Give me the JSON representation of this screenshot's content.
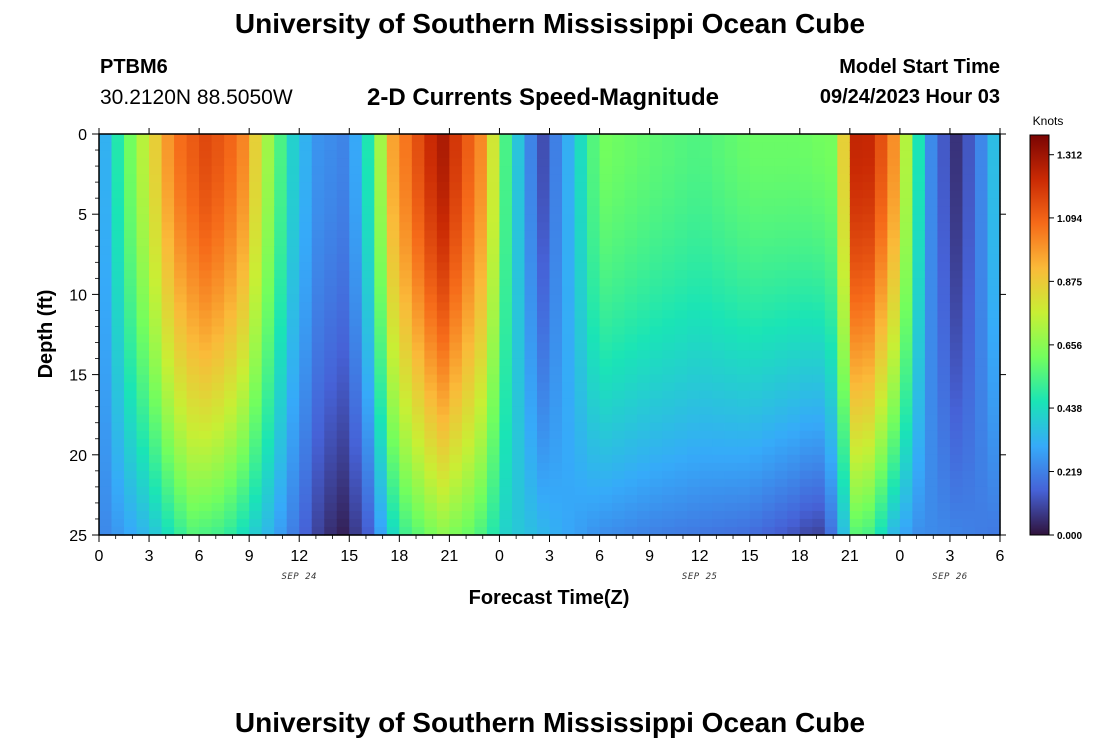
{
  "header": {
    "title": "University of Southern Mississippi Ocean Cube",
    "station_id": "PTBM6",
    "coords": "30.2120N  88.5050W",
    "model_label": "Model Start Time",
    "model_time": "09/24/2023 Hour 03"
  },
  "footer": {
    "title": "University of Southern Mississippi Ocean Cube"
  },
  "chart_data": {
    "type": "heatmap",
    "title": "2-D Currents Speed-Magnitude",
    "xlabel": "Forecast Time(Z)",
    "ylabel": "Depth (ft)",
    "x_unit": "hours since 2023-09-24 00Z",
    "xlim": [
      0,
      54
    ],
    "ylim": [
      0,
      25
    ],
    "y_inverted": true,
    "x_ticks": [
      0,
      3,
      6,
      9,
      12,
      15,
      18,
      21,
      24,
      27,
      30,
      33,
      36,
      39,
      42,
      45,
      48,
      51,
      54
    ],
    "x_tick_labels": [
      "0",
      "3",
      "6",
      "9",
      "12",
      "15",
      "18",
      "21",
      "0",
      "3",
      "6",
      "9",
      "12",
      "15",
      "18",
      "21",
      "0",
      "3",
      "6"
    ],
    "y_ticks": [
      0,
      5,
      10,
      15,
      20,
      25
    ],
    "y_tick_labels": [
      "0",
      "5",
      "10",
      "15",
      "20",
      "25"
    ],
    "date_labels": [
      {
        "text": "SEP 24",
        "x": 12
      },
      {
        "text": "SEP 25",
        "x": 36
      },
      {
        "text": "SEP 26",
        "x": 51
      }
    ],
    "colorbar": {
      "unit": "Knots",
      "min": 0.0,
      "max": 1.38,
      "ticks": [
        0.0,
        0.219,
        0.438,
        0.656,
        0.875,
        1.094,
        1.312
      ],
      "tick_labels": [
        "0.000",
        "0.219",
        "0.438",
        "0.656",
        "0.875",
        "1.094",
        "1.312"
      ],
      "colors": [
        "#30123b",
        "#4662d7",
        "#36aaf9",
        "#1ae4b6",
        "#72fe5e",
        "#c8ef34",
        "#faba39",
        "#f66b19",
        "#ca2a04",
        "#7a0403"
      ]
    },
    "surface_speed_knots": [
      {
        "t": 0,
        "v": 0.25
      },
      {
        "t": 1.5,
        "v": 0.55
      },
      {
        "t": 3,
        "v": 0.8
      },
      {
        "t": 4.5,
        "v": 1.05
      },
      {
        "t": 6.5,
        "v": 1.16
      },
      {
        "t": 8.5,
        "v": 1.05
      },
      {
        "t": 10,
        "v": 0.72
      },
      {
        "t": 11.5,
        "v": 0.42
      },
      {
        "t": 13,
        "v": 0.26
      },
      {
        "t": 15,
        "v": 0.22
      },
      {
        "t": 16.5,
        "v": 0.55
      },
      {
        "t": 17.5,
        "v": 0.95
      },
      {
        "t": 20.5,
        "v": 1.3
      },
      {
        "t": 23,
        "v": 1.0
      },
      {
        "t": 24.5,
        "v": 0.5
      },
      {
        "t": 26.5,
        "v": 0.1
      },
      {
        "t": 28,
        "v": 0.3
      },
      {
        "t": 30,
        "v": 0.62
      },
      {
        "t": 33,
        "v": 0.58
      },
      {
        "t": 36,
        "v": 0.55
      },
      {
        "t": 39,
        "v": 0.6
      },
      {
        "t": 42,
        "v": 0.6
      },
      {
        "t": 44,
        "v": 0.62
      },
      {
        "t": 45,
        "v": 1.0
      },
      {
        "t": 45.5,
        "v": 1.32
      },
      {
        "t": 47.5,
        "v": 1.05
      },
      {
        "t": 49,
        "v": 0.5
      },
      {
        "t": 50,
        "v": 0.2
      },
      {
        "t": 51.5,
        "v": 0.05
      },
      {
        "t": 53,
        "v": 0.25
      },
      {
        "t": 54,
        "v": 0.42
      }
    ],
    "bottom_speed_knots": [
      {
        "t": 0,
        "v": 0.22
      },
      {
        "t": 3,
        "v": 0.35
      },
      {
        "t": 5.5,
        "v": 0.56
      },
      {
        "t": 7.5,
        "v": 0.52
      },
      {
        "t": 10,
        "v": 0.35
      },
      {
        "t": 13,
        "v": 0.1
      },
      {
        "t": 14.5,
        "v": 0.02
      },
      {
        "t": 16,
        "v": 0.12
      },
      {
        "t": 18,
        "v": 0.5
      },
      {
        "t": 20.5,
        "v": 0.66
      },
      {
        "t": 22.5,
        "v": 0.58
      },
      {
        "t": 24.5,
        "v": 0.4
      },
      {
        "t": 27,
        "v": 0.33
      },
      {
        "t": 30,
        "v": 0.25
      },
      {
        "t": 33,
        "v": 0.22
      },
      {
        "t": 36,
        "v": 0.2
      },
      {
        "t": 39,
        "v": 0.18
      },
      {
        "t": 42,
        "v": 0.12
      },
      {
        "t": 43,
        "v": 0.08
      },
      {
        "t": 44,
        "v": 0.2
      },
      {
        "t": 45,
        "v": 0.45
      },
      {
        "t": 45.5,
        "v": 0.6
      },
      {
        "t": 46.5,
        "v": 0.5
      },
      {
        "t": 47.5,
        "v": 0.35
      },
      {
        "t": 49,
        "v": 0.25
      },
      {
        "t": 52,
        "v": 0.22
      },
      {
        "t": 54,
        "v": 0.2
      }
    ],
    "profile_exponent": 1.6,
    "grid": false
  }
}
